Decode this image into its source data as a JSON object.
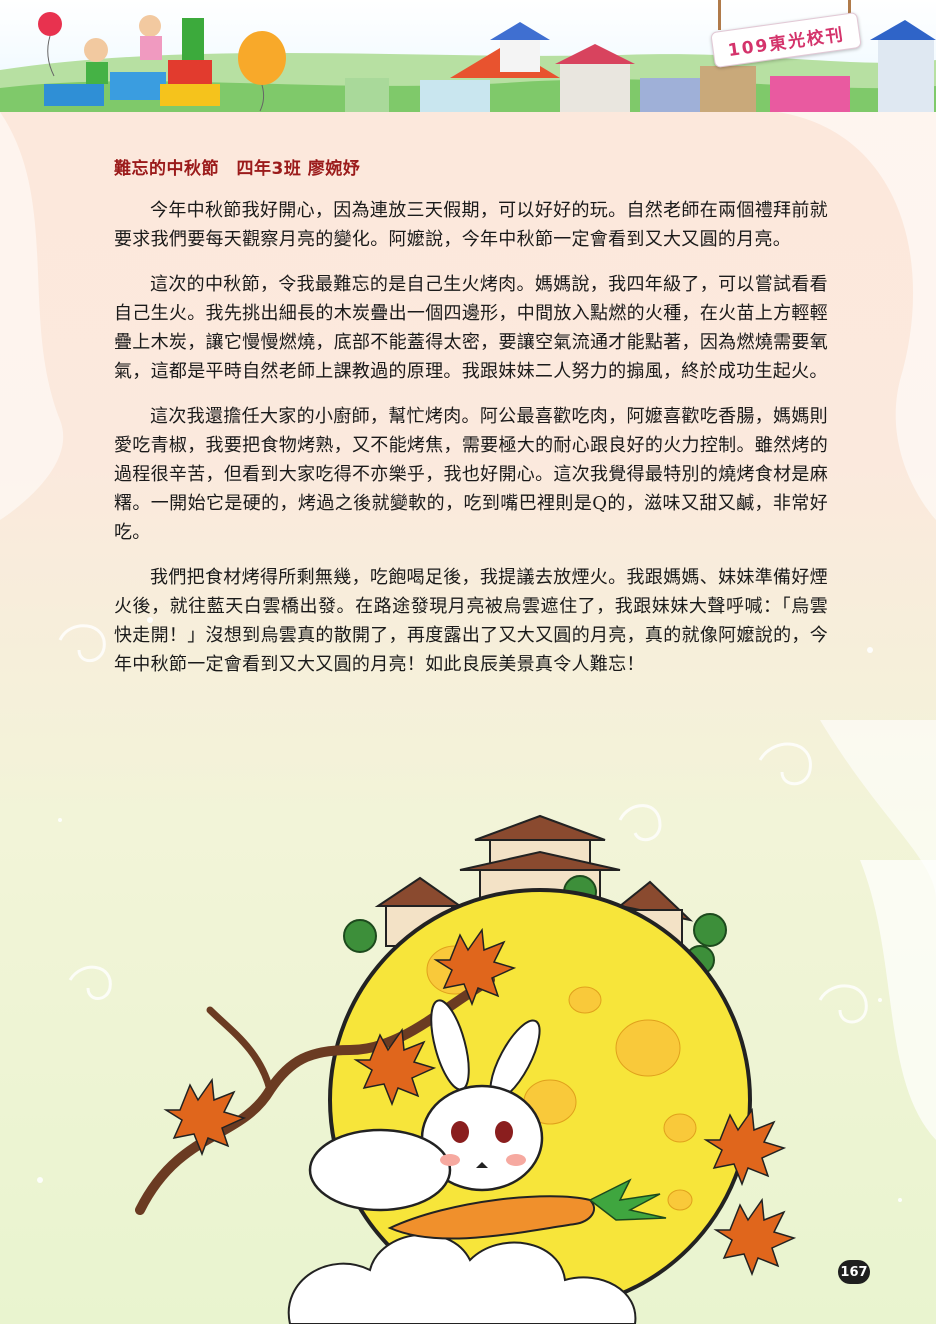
{
  "header": {
    "banner_text": "109東光校刊"
  },
  "article": {
    "title": "難忘的中秋節　四年3班 廖婉妤",
    "paragraphs": [
      "今年中秋節我好開心，因為連放三天假期，可以好好的玩。自然老師在兩個禮拜前就要求我們要每天觀察月亮的變化。阿嬤說，今年中秋節一定會看到又大又圓的月亮。",
      "這次的中秋節，令我最難忘的是自己生火烤肉。媽媽說，我四年級了，可以嘗試看看自己生火。我先挑出細長的木炭疊出一個四邊形，中間放入點燃的火種，在火苗上方輕輕疊上木炭，讓它慢慢燃燒，底部不能蓋得太密，要讓空氣流通才能點著，因為燃燒需要氧氣，這都是平時自然老師上課教過的原理。我跟妹妹二人努力的搧風，終於成功生起火。",
      "這次我還擔任大家的小廚師，幫忙烤肉。阿公最喜歡吃肉，阿嬤喜歡吃香腸，媽媽則愛吃青椒，我要把食物烤熟，又不能烤焦，需要極大的耐心跟良好的火力控制。雖然烤的過程很辛苦，但看到大家吃得不亦樂乎，我也好開心。這次我覺得最特別的燒烤食材是麻糬。一開始它是硬的，烤過之後就變軟的，吃到嘴巴裡則是Q的，滋味又甜又鹹，非常好吃。",
      "我們把食材烤得所剩無幾，吃飽喝足後，我提議去放煙火。我跟媽媽、妹妹準備好煙火後，就往藍天白雲橋出發。在路途發現月亮被烏雲遮住了，我跟妹妹大聲呼喊：「烏雲快走開！」沒想到烏雲真的散開了，再度露出了又大又圓的月亮，真的就像阿嬤說的，今年中秋節一定會看到又大又圓的月亮！如此良辰美景真令人難忘！"
    ]
  },
  "page": {
    "number": "167"
  },
  "colors": {
    "title": "#9b1b1b",
    "banner_text": "#d4336b",
    "moon": "#f7e53a",
    "maple_leaf": "#e0661c"
  }
}
